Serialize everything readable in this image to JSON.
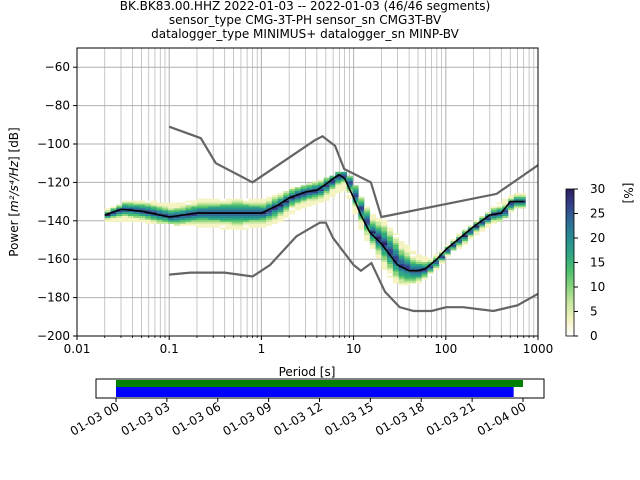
{
  "chart_data": {
    "type": "heatmap",
    "title_lines": [
      "BK.BK83.00.HHZ   2022-01-03 -- 2022-01-03  (46/46 segments)",
      "sensor_type CMG-3T-PH sensor_sn CMG3T-BV",
      "datalogger_type MINIMUS+ datalogger_sn MINP-BV"
    ],
    "xlabel": "Period [s]",
    "ylabel_prefix": "Power [",
    "ylabel_math": "m²/s⁴/Hz",
    "ylabel_suffix": "] [dB]",
    "x_scale": "log",
    "xlim": [
      0.01,
      1000
    ],
    "ylim": [
      -200,
      -50
    ],
    "x_ticks": [
      0.01,
      0.1,
      1,
      10,
      100,
      1000
    ],
    "x_tick_labels": [
      "0.01",
      "0.1",
      "1",
      "10",
      "100",
      "1000"
    ],
    "y_ticks": [
      -200,
      -180,
      -160,
      -140,
      -120,
      -100,
      -80,
      -60
    ],
    "y_tick_labels": [
      "−200",
      "−180",
      "−160",
      "−140",
      "−120",
      "−100",
      "−80",
      "−60"
    ],
    "grid": true,
    "colorbar": {
      "label": "[%]",
      "range": [
        0,
        30
      ],
      "ticks": [
        0,
        5,
        10,
        15,
        20,
        25,
        30
      ],
      "tick_labels": [
        "0",
        "5",
        "10",
        "15",
        "20",
        "25",
        "30"
      ],
      "colors": [
        "#ffffff",
        "#f5f3c1",
        "#c9e8a0",
        "#8bd47d",
        "#4cbf6f",
        "#2fa683",
        "#278c93",
        "#2f6c95",
        "#35418a",
        "#2d1f5e"
      ]
    },
    "mean_curve": {
      "periods": [
        0.02,
        0.03,
        0.05,
        0.1,
        0.2,
        0.5,
        1,
        1.5,
        2,
        3,
        4,
        5,
        6,
        7,
        8,
        10,
        12,
        15,
        20,
        25,
        30,
        40,
        50,
        60,
        80,
        100,
        150,
        200,
        300,
        400,
        500,
        700
      ],
      "power_db": [
        -137,
        -134,
        -135,
        -138,
        -136,
        -136,
        -136,
        -132,
        -128,
        -125,
        -124,
        -121,
        -118,
        -116,
        -118,
        -128,
        -137,
        -146,
        -152,
        -158,
        -163,
        -166,
        -166,
        -165,
        -160,
        -155,
        -148,
        -143,
        -137,
        -136,
        -130,
        -130
      ]
    },
    "nhnm": {
      "periods": [
        0.1,
        0.22,
        0.32,
        0.8,
        3.8,
        4.6,
        6.3,
        7.9,
        15.4,
        20,
        354.8,
        1000
      ],
      "power_db": [
        -91,
        -97,
        -110,
        -120,
        -98,
        -96,
        -101,
        -113,
        -120,
        -138,
        -126,
        -111
      ]
    },
    "nlnm": {
      "periods": [
        0.1,
        0.17,
        0.4,
        0.8,
        1.24,
        2.4,
        4.3,
        5,
        6,
        10,
        12,
        15.6,
        21.9,
        31.6,
        45,
        70,
        101,
        154,
        328,
        600,
        1000
      ],
      "power_db": [
        -168,
        -167,
        -167,
        -169,
        -163,
        -148,
        -141,
        -141,
        -149,
        -163,
        -166,
        -162,
        -177,
        -185,
        -187,
        -187,
        -185,
        -185,
        -187,
        -184,
        -178
      ]
    },
    "histogram_band": {
      "periods": [
        0.02,
        0.03,
        0.05,
        0.1,
        0.2,
        0.5,
        1,
        1.5,
        2,
        3,
        4,
        5,
        6,
        7,
        8,
        10,
        12,
        15,
        20,
        25,
        30,
        40,
        50,
        60,
        80,
        100,
        150,
        200,
        300,
        400,
        500,
        700
      ],
      "lower_db": [
        -140,
        -140,
        -141,
        -142,
        -143,
        -145,
        -143,
        -140,
        -136,
        -133,
        -131,
        -129,
        -126,
        -124,
        -126,
        -138,
        -148,
        -155,
        -165,
        -172,
        -174,
        -173,
        -172,
        -169,
        -164,
        -158,
        -152,
        -147,
        -142,
        -139,
        -134,
        -133
      ],
      "upper_db": [
        -134,
        -130,
        -129,
        -131,
        -129,
        -129,
        -129,
        -125,
        -123,
        -121,
        -119,
        -117,
        -115,
        -114,
        -115,
        -122,
        -130,
        -137,
        -140,
        -145,
        -150,
        -155,
        -158,
        -160,
        -157,
        -152,
        -144,
        -140,
        -133,
        -129,
        -126,
        -125
      ]
    },
    "timeline": {
      "tick_labels": [
        "01-03 00",
        "01-03 03",
        "01-03 06",
        "01-03 09",
        "01-03 12",
        "01-03 15",
        "01-03 18",
        "01-03 21",
        "01-04 00"
      ],
      "data_coverage_fraction": 1.0,
      "segments_coverage_fraction": 0.977,
      "data_color": "#008000",
      "segments_color": "#0000ff"
    },
    "colors": {
      "model_lines": "#646464",
      "mean_line": "#000000",
      "grid": "#b0b0b0"
    }
  }
}
